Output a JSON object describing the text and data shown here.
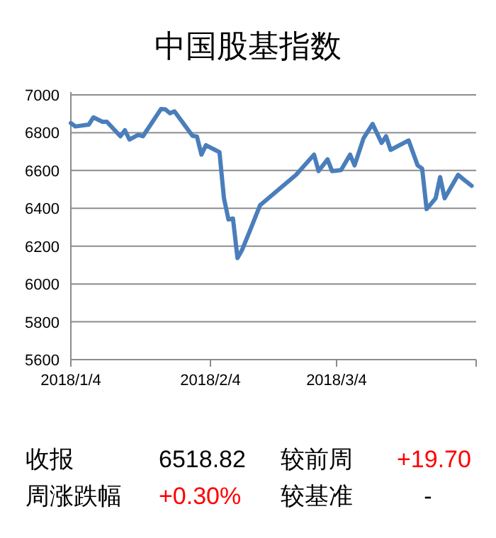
{
  "chart_data": {
    "type": "line",
    "title": "中国股基指数",
    "x": [
      "2018-01-04",
      "2018-01-05",
      "2018-01-08",
      "2018-01-09",
      "2018-01-11",
      "2018-01-12",
      "2018-01-15",
      "2018-01-16",
      "2018-01-17",
      "2018-01-19",
      "2018-01-20",
      "2018-01-24",
      "2018-01-25",
      "2018-01-26",
      "2018-01-27",
      "2018-01-31",
      "2018-02-01",
      "2018-02-02",
      "2018-02-03",
      "2018-02-05",
      "2018-02-06",
      "2018-02-07",
      "2018-02-08",
      "2018-02-09",
      "2018-02-10",
      "2018-02-11",
      "2018-02-13",
      "2018-02-15",
      "2018-02-23",
      "2018-02-27",
      "2018-02-28",
      "2018-03-02",
      "2018-03-03",
      "2018-03-05",
      "2018-03-07",
      "2018-03-08",
      "2018-03-10",
      "2018-03-12",
      "2018-03-14",
      "2018-03-15",
      "2018-03-16",
      "2018-03-20",
      "2018-03-22",
      "2018-03-23",
      "2018-03-24",
      "2018-03-26",
      "2018-03-27",
      "2018-03-28",
      "2018-03-31",
      "2018-04-01",
      "2018-04-03"
    ],
    "series": [
      {
        "color": "#4a7ebb",
        "values": [
          6851,
          6833,
          6843,
          6881,
          6858,
          6858,
          6781,
          6813,
          6764,
          6789,
          6781,
          6925,
          6923,
          6903,
          6913,
          6784,
          6779,
          6684,
          6734,
          6709,
          6697,
          6453,
          6341,
          6346,
          6137,
          6179,
          6296,
          6416,
          6577,
          6684,
          6597,
          6659,
          6597,
          6602,
          6684,
          6627,
          6771,
          6846,
          6746,
          6781,
          6709,
          6759,
          6627,
          6610,
          6396,
          6453,
          6565,
          6453,
          6577,
          6557,
          6519
        ]
      }
    ],
    "xlim": [
      "2018-01-04",
      "2018-04-04"
    ],
    "xticks": [
      {
        "value": "2018-01-04",
        "label": "2018/1/4"
      },
      {
        "value": "2018-02-04",
        "label": "2018/2/4"
      },
      {
        "value": "2018-03-04",
        "label": "2018/3/4"
      },
      {
        "value": "2018-04-04",
        "label": null
      }
    ],
    "ylim": [
      5600,
      7000
    ],
    "yticks": [
      5600,
      5800,
      6000,
      6200,
      6400,
      6600,
      6800,
      7000
    ],
    "grid": "y",
    "marker": "none",
    "line_style": "solid",
    "annotations": [
      "收报",
      "6518.82",
      "较前周",
      "+19.70",
      "周涨跌幅",
      "+0.30%",
      "较基准",
      "-"
    ]
  }
}
